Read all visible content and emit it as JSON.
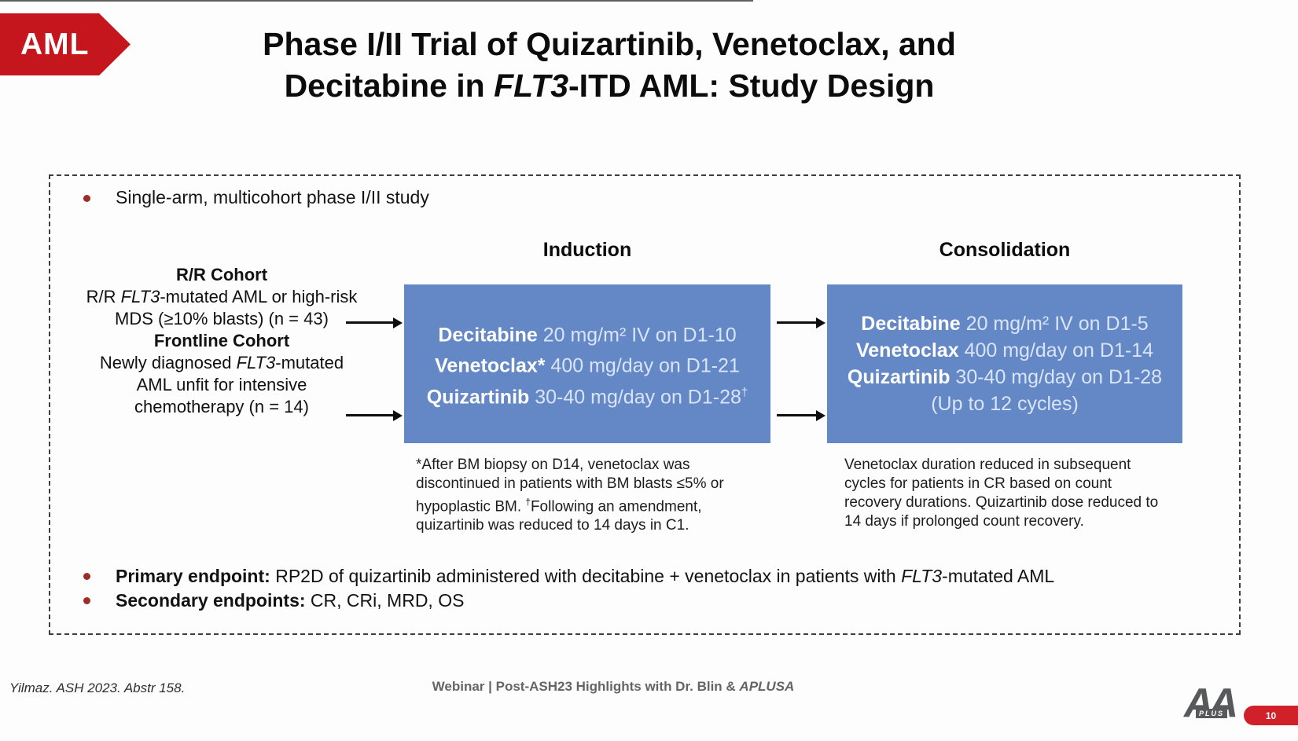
{
  "colors": {
    "badge_red": "#c5161d",
    "box_blue": "#6488c6",
    "box_text_dim": "#d9e5f6",
    "bullet_red": "#9e2b25",
    "pill_red": "#d0202a",
    "logo_gray": "#58595b"
  },
  "badge": {
    "label": "AML"
  },
  "title": {
    "line1": "Phase I/II Trial of Quizartinib, Venetoclax, and",
    "line2_pre": "Decitabine in ",
    "line2_italic": "FLT3",
    "line2_post": "-ITD AML: Study Design"
  },
  "study": {
    "bullet1": "Single-arm, multicohort phase I/II study",
    "cohorts": {
      "rr_title": "R/R Cohort",
      "rr_pre": "R/R ",
      "rr_italic": "FLT3",
      "rr_post": "-mutated AML or high-risk",
      "rr_line2": "MDS (≥10% blasts) (n = 43)",
      "fl_title": "Frontline Cohort",
      "fl_pre": "Newly diagnosed ",
      "fl_italic": "FLT3",
      "fl_post": "-mutated",
      "fl_line2": "AML unfit for intensive",
      "fl_line3": "chemotherapy (n = 14)"
    },
    "induction": {
      "header": "Induction",
      "rows": [
        {
          "drug": "Decitabine",
          "dose": " 20 mg/m² IV on D1-10",
          "sup": ""
        },
        {
          "drug": "Venetoclax*",
          "dose": " 400 mg/day on D1-21",
          "sup": ""
        },
        {
          "drug": "Quizartinib",
          "dose": " 30-40 mg/day on D1-28",
          "sup": "†"
        }
      ],
      "footnote_pre": "*After BM biopsy on D14, venetoclax was discontinued in patients with BM blasts ≤5% or hypoplastic BM. ",
      "footnote_sup": "†",
      "footnote_post": "Following an amendment, quizartinib was reduced to 14 days in C1."
    },
    "consolidation": {
      "header": "Consolidation",
      "rows": [
        {
          "drug": "Decitabine",
          "dose": " 20 mg/m² IV on D1-5",
          "sup": ""
        },
        {
          "drug": "Venetoclax",
          "dose": " 400 mg/day on D1-14",
          "sup": ""
        },
        {
          "drug": "Quizartinib",
          "dose": " 30-40 mg/day on D1-28",
          "sup": ""
        }
      ],
      "extra_row": "(Up to 12 cycles)",
      "footnote": "Venetoclax duration reduced in subsequent cycles for patients in CR based on count recovery durations. Quizartinib dose reduced to 14 days if prolonged count recovery."
    },
    "endpoints": {
      "primary_label": "Primary endpoint:",
      "primary_pre": " RP2D of quizartinib administered with decitabine + venetoclax in patients with ",
      "primary_italic": "FLT3",
      "primary_post": "-mutated AML",
      "secondary_label": "Secondary endpoints:",
      "secondary_text": " CR, CRi, MRD, OS"
    }
  },
  "footer": {
    "citation": "Yilmaz. ASH 2023. Abstr 158.",
    "center_pre": "Webinar | Post-ASH23 Highlights with Dr. Blin & ",
    "center_italic": "APLUSA",
    "logo_text": "AA",
    "logo_sub": "PLUS",
    "page_number": "10"
  }
}
